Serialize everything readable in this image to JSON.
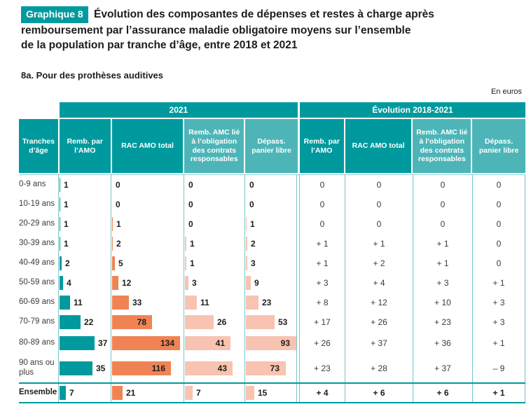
{
  "page": {
    "title_badge": "Graphique 8",
    "title_line1": "Évolution des composantes de dépenses et restes à charge après",
    "title_line2": "remboursement par l’assurance maladie obligatoire moyens sur l’ensemble",
    "title_line3": "de la population par tranche d’âge, entre 2018 et 2021",
    "subtitle": "8a. Pour des prothèses auditives",
    "unit": "En euros"
  },
  "colors": {
    "teal": "#009A9E",
    "teal_light": "#4DB5B8",
    "grid_border": "#74C7CA",
    "bar_teal": "#009A9E",
    "bar_orange": "#F08354",
    "bar_salmon": "#F8C3B0",
    "text": "#1D1D1B",
    "text_soft": "#3C3C3B"
  },
  "table": {
    "row_header": "Tranches d’âge",
    "group_2021": "2021",
    "group_evolution": "Évolution 2018-2021",
    "columns": [
      "Remb. par l’AMO",
      "RAC AMO total",
      "Remb. AMC lié à l’obligation des contrats responsables",
      "Dépass. panier libre"
    ],
    "rows": [
      {
        "label": "0-9 ans",
        "values_2021": [
          1,
          0,
          0,
          0
        ],
        "evolution": [
          "0",
          "0",
          "0",
          "0"
        ]
      },
      {
        "label": "10-19 ans",
        "values_2021": [
          1,
          0,
          0,
          0
        ],
        "evolution": [
          "0",
          "0",
          "0",
          "0"
        ]
      },
      {
        "label": "20-29 ans",
        "values_2021": [
          1,
          1,
          0,
          1
        ],
        "evolution": [
          "0",
          "0",
          "0",
          "0"
        ]
      },
      {
        "label": "30-39 ans",
        "values_2021": [
          1,
          2,
          1,
          2
        ],
        "evolution": [
          "+ 1",
          "+ 1",
          "+ 1",
          "0"
        ]
      },
      {
        "label": "40-49 ans",
        "values_2021": [
          2,
          5,
          1,
          3
        ],
        "evolution": [
          "+ 1",
          "+ 2",
          "+ 1",
          "0"
        ]
      },
      {
        "label": "50-59 ans",
        "values_2021": [
          4,
          12,
          3,
          9
        ],
        "evolution": [
          "+ 3",
          "+ 4",
          "+ 3",
          "+ 1"
        ]
      },
      {
        "label": "60-69 ans",
        "values_2021": [
          11,
          33,
          11,
          23
        ],
        "evolution": [
          "+ 8",
          "+ 12",
          "+ 10",
          "+ 3"
        ]
      },
      {
        "label": "70-79 ans",
        "values_2021": [
          22,
          78,
          26,
          53
        ],
        "evolution": [
          "+ 17",
          "+ 26",
          "+ 23",
          "+ 3"
        ]
      },
      {
        "label": "80-89 ans",
        "values_2021": [
          37,
          134,
          41,
          93
        ],
        "evolution": [
          "+ 26",
          "+ 37",
          "+ 36",
          "+ 1"
        ]
      },
      {
        "label": "90 ans ou plus",
        "values_2021": [
          35,
          116,
          43,
          73
        ],
        "evolution": [
          "+ 23",
          "+ 28",
          "+ 37",
          "– 9"
        ]
      },
      {
        "label": "Ensemble",
        "ensemble": true,
        "values_2021": [
          7,
          21,
          7,
          15
        ],
        "evolution": [
          "+ 4",
          "+ 6",
          "+ 6",
          "+ 1"
        ]
      }
    ]
  },
  "chart_data": {
    "type": "bar",
    "title": "Évolution des composantes de dépenses et restes à charge après remboursement par l’assurance maladie obligatoire moyens sur l’ensemble de la population par tranche d’âge, entre 2018 et 2021",
    "subtitle": "8a. Pour des prothèses auditives",
    "unit": "En euros",
    "orientation": "horizontal",
    "categories": [
      "0-9 ans",
      "10-19 ans",
      "20-29 ans",
      "30-39 ans",
      "40-49 ans",
      "50-59 ans",
      "60-69 ans",
      "70-79 ans",
      "80-89 ans",
      "90 ans ou plus",
      "Ensemble"
    ],
    "series": [
      {
        "name": "Remb. par l’AMO (2021)",
        "color": "#009A9E",
        "values": [
          1,
          1,
          1,
          1,
          2,
          4,
          11,
          22,
          37,
          35,
          7
        ]
      },
      {
        "name": "RAC AMO total (2021)",
        "color": "#F08354",
        "values": [
          0,
          0,
          1,
          2,
          5,
          12,
          33,
          78,
          134,
          116,
          21
        ]
      },
      {
        "name": "Remb. AMC lié à l’obligation des contrats responsables (2021)",
        "color": "#F8C3B0",
        "values": [
          0,
          0,
          0,
          1,
          1,
          3,
          11,
          26,
          41,
          43,
          7
        ]
      },
      {
        "name": "Dépass. panier libre (2021)",
        "color": "#F8C3B0",
        "values": [
          0,
          0,
          1,
          2,
          3,
          9,
          23,
          53,
          93,
          73,
          15
        ]
      },
      {
        "name": "Remb. par l’AMO (évolution 2018-2021)",
        "values": [
          0,
          0,
          0,
          1,
          1,
          3,
          8,
          17,
          26,
          23,
          4
        ]
      },
      {
        "name": "RAC AMO total (évolution 2018-2021)",
        "values": [
          0,
          0,
          0,
          1,
          2,
          4,
          12,
          26,
          37,
          28,
          6
        ]
      },
      {
        "name": "Remb. AMC lié à l’obligation des contrats responsables (évolution 2018-2021)",
        "values": [
          0,
          0,
          0,
          1,
          1,
          3,
          10,
          23,
          36,
          37,
          6
        ]
      },
      {
        "name": "Dépass. panier libre (évolution 2018-2021)",
        "values": [
          0,
          0,
          0,
          0,
          0,
          1,
          3,
          3,
          1,
          -9,
          1
        ]
      }
    ],
    "value_range": [
      0,
      134
    ],
    "grid": false,
    "legend": "none"
  }
}
